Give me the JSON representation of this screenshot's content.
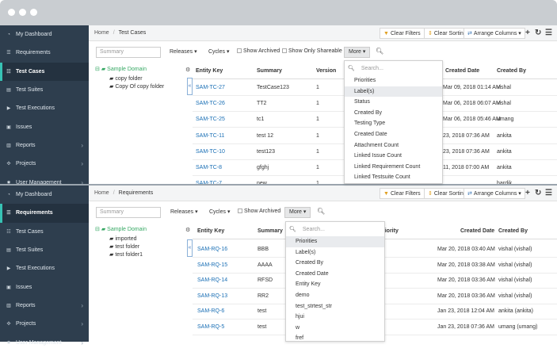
{
  "window": {
    "colors": {
      "chrome": "#c9cdd1",
      "sidebar": "#2e3e4e",
      "accent": "#37c2b4",
      "link": "#1a6fb5"
    }
  },
  "toolbar": {
    "clear_filters": "Clear Filters",
    "clear_sorting": "Clear Sorting",
    "arrange_columns": "Arrange Columns"
  },
  "panel1": {
    "sidebar": [
      {
        "label": "My Dashboard",
        "icon": "dashboard-icon"
      },
      {
        "label": "Requirements",
        "icon": "requirements-icon"
      },
      {
        "label": "Test Cases",
        "icon": "list-icon",
        "active": true
      },
      {
        "label": "Test Suites",
        "icon": "suites-icon"
      },
      {
        "label": "Test Executions",
        "icon": "play-icon"
      },
      {
        "label": "Issues",
        "icon": "issues-icon"
      },
      {
        "label": "Reports",
        "icon": "reports-icon",
        "chevron": true
      },
      {
        "label": "Projects",
        "icon": "projects-icon",
        "chevron": true
      },
      {
        "label": "User Management",
        "icon": "users-icon",
        "chevron": true
      }
    ],
    "breadcrumb": {
      "home": "Home",
      "current": "Test Cases"
    },
    "filters": {
      "search_placeholder": "Summary",
      "releases": "Releases",
      "cycles": "Cycles",
      "show_archived": "Show Archived",
      "show_shareable": "Show Only Shareable",
      "more": "More"
    },
    "tree": {
      "root": "Sample Domain",
      "children": [
        "copy folder",
        "Copy Of copy folder"
      ]
    },
    "columns": {
      "key": "Entity Key",
      "summary": "Summary",
      "version": "Version",
      "created_date": "Created Date",
      "created_by": "Created By"
    },
    "rows": [
      {
        "key": "SAM-TC-27",
        "summary": "TestCase123",
        "version": "1",
        "date": "Mar 09, 2018 01:14 AM",
        "by": "vishal"
      },
      {
        "key": "SAM-TC-26",
        "summary": "TT2",
        "version": "1",
        "date": "Mar 06, 2018 06:07 AM",
        "by": "vishal"
      },
      {
        "key": "SAM-TC-25",
        "summary": "tc1",
        "version": "1",
        "date": "Mar 06, 2018 05:46 AM",
        "by": "umang"
      },
      {
        "key": "SAM-TC-11",
        "summary": "test 12",
        "version": "1",
        "date": "23, 2018 07:36 AM",
        "by": "ankita"
      },
      {
        "key": "SAM-TC-10",
        "summary": "test123",
        "version": "1",
        "date": "23, 2018 07:36 AM",
        "by": "ankita"
      },
      {
        "key": "SAM-TC-8",
        "summary": "gfghj",
        "version": "1",
        "date": "11, 2018 07:00 AM",
        "by": "ankita"
      },
      {
        "key": "SAM-TC-7",
        "summary": "new",
        "version": "1",
        "date": "",
        "by": "hardik"
      }
    ],
    "more_search_placeholder": "Search...",
    "more_options": [
      "Priorities",
      "Label(s)",
      "Status",
      "Created By",
      "Testing Type",
      "Created Date",
      "Attachment Count",
      "Linked Issue Count",
      "Linked Requirement Count",
      "Linked Testsuite Count"
    ],
    "more_highlight": 1
  },
  "panel2": {
    "sidebar": [
      {
        "label": "My Dashboard",
        "icon": "dashboard-icon"
      },
      {
        "label": "Requirements",
        "icon": "requirements-icon",
        "active": true
      },
      {
        "label": "Test Cases",
        "icon": "list-icon"
      },
      {
        "label": "Test Suites",
        "icon": "suites-icon"
      },
      {
        "label": "Test Executions",
        "icon": "play-icon"
      },
      {
        "label": "Issues",
        "icon": "issues-icon"
      },
      {
        "label": "Reports",
        "icon": "reports-icon",
        "chevron": true
      },
      {
        "label": "Projects",
        "icon": "projects-icon",
        "chevron": true
      },
      {
        "label": "User Management",
        "icon": "users-icon",
        "chevron": true
      }
    ],
    "breadcrumb": {
      "home": "Home",
      "current": "Requirements"
    },
    "filters": {
      "search_placeholder": "Summary",
      "releases": "Releases",
      "cycles": "Cycles",
      "show_archived": "Show Archived",
      "more": "More"
    },
    "tree": {
      "root": "Sample Domain",
      "children": [
        "imported",
        "test folder",
        "test folder1"
      ]
    },
    "columns": {
      "key": "Entity Key",
      "summary": "Summary",
      "priority": "riority",
      "created_date": "Created Date",
      "created_by": "Created By"
    },
    "rows": [
      {
        "key": "SAM-RQ-16",
        "summary": "BBB",
        "date": "Mar 20, 2018 03:40 AM",
        "by": "vishal (vishal)"
      },
      {
        "key": "SAM-RQ-15",
        "summary": "AAAA",
        "date": "Mar 20, 2018 03:38 AM",
        "by": "vishal (vishal)"
      },
      {
        "key": "SAM-RQ-14",
        "summary": "RFSD",
        "date": "Mar 20, 2018 03:36 AM",
        "by": "vishal (vishal)"
      },
      {
        "key": "SAM-RQ-13",
        "summary": "RR2",
        "date": "Mar 20, 2018 03:36 AM",
        "by": "vishal (vishal)"
      },
      {
        "key": "SAM-RQ-6",
        "summary": "test",
        "date": "Jan 23, 2018 12:04 AM",
        "by": "ankita (ankita)"
      },
      {
        "key": "SAM-RQ-5",
        "summary": "test",
        "date": "Jan 23, 2018 07:36 AM",
        "by": "umang (umang)"
      }
    ],
    "more_search_placeholder": "Search...",
    "more_options": [
      "Priorities",
      "Label(s)",
      "Created By",
      "Created Date",
      "Entity Key",
      "demo",
      "test_strtest_str",
      "hjui",
      "w",
      "fref"
    ],
    "more_highlight": 0
  }
}
